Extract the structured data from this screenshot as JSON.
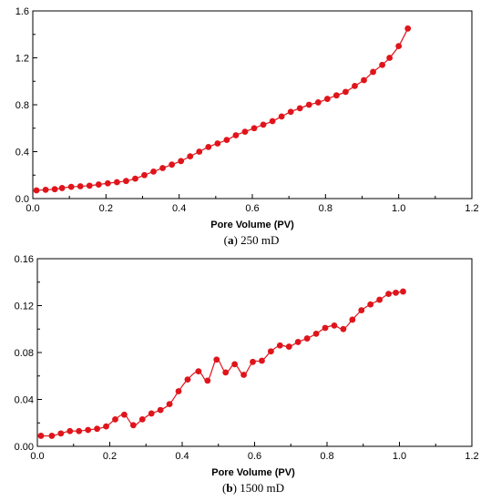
{
  "chart_data": [
    {
      "type": "line",
      "caption_tag": "a",
      "caption_text": "250 mD",
      "xlabel": "Pore Volume (PV)",
      "ylabel": "",
      "xlim": [
        0,
        1.2
      ],
      "ylim": [
        0,
        1.6
      ],
      "xticks": [
        "0.0",
        "0.2",
        "0.4",
        "0.6",
        "0.8",
        "1.0",
        "1.2"
      ],
      "yticks": [
        "0.0",
        "0.4",
        "0.8",
        "1.2",
        "1.6"
      ],
      "series": [
        {
          "color": "#e0141b",
          "x": [
            0.01,
            0.035,
            0.06,
            0.08,
            0.105,
            0.13,
            0.155,
            0.18,
            0.205,
            0.23,
            0.255,
            0.28,
            0.305,
            0.33,
            0.355,
            0.38,
            0.405,
            0.43,
            0.455,
            0.48,
            0.505,
            0.53,
            0.555,
            0.58,
            0.605,
            0.63,
            0.655,
            0.68,
            0.705,
            0.73,
            0.755,
            0.78,
            0.805,
            0.83,
            0.855,
            0.88,
            0.905,
            0.93,
            0.955,
            0.975,
            1.0,
            1.025
          ],
          "y": [
            0.07,
            0.075,
            0.08,
            0.09,
            0.1,
            0.105,
            0.11,
            0.12,
            0.13,
            0.14,
            0.15,
            0.17,
            0.2,
            0.23,
            0.26,
            0.29,
            0.32,
            0.36,
            0.4,
            0.44,
            0.47,
            0.5,
            0.54,
            0.57,
            0.6,
            0.63,
            0.66,
            0.7,
            0.74,
            0.77,
            0.8,
            0.82,
            0.85,
            0.88,
            0.91,
            0.96,
            1.01,
            1.08,
            1.14,
            1.2,
            1.3,
            1.45
          ]
        }
      ]
    },
    {
      "type": "line",
      "caption_tag": "b",
      "caption_text": "1500 mD",
      "xlabel": "Pore Volume (PV)",
      "ylabel": "",
      "xlim": [
        0,
        1.2
      ],
      "ylim": [
        0,
        0.16
      ],
      "xticks": [
        "0.0",
        "0.2",
        "0.4",
        "0.6",
        "0.8",
        "1.0",
        "1.2"
      ],
      "yticks": [
        "0.00",
        "0.04",
        "0.08",
        "0.12",
        "0.16"
      ],
      "series": [
        {
          "color": "#e0141b",
          "x": [
            0.01,
            0.04,
            0.065,
            0.09,
            0.115,
            0.14,
            0.165,
            0.19,
            0.215,
            0.24,
            0.265,
            0.29,
            0.315,
            0.34,
            0.365,
            0.39,
            0.415,
            0.445,
            0.47,
            0.495,
            0.52,
            0.545,
            0.57,
            0.595,
            0.62,
            0.645,
            0.67,
            0.695,
            0.72,
            0.745,
            0.77,
            0.795,
            0.82,
            0.845,
            0.87,
            0.895,
            0.92,
            0.945,
            0.97,
            0.99,
            1.01
          ],
          "y": [
            0.009,
            0.009,
            0.011,
            0.013,
            0.013,
            0.014,
            0.015,
            0.017,
            0.023,
            0.027,
            0.018,
            0.023,
            0.028,
            0.031,
            0.036,
            0.047,
            0.057,
            0.064,
            0.056,
            0.074,
            0.063,
            0.07,
            0.061,
            0.072,
            0.073,
            0.081,
            0.086,
            0.085,
            0.089,
            0.092,
            0.096,
            0.101,
            0.103,
            0.1,
            0.108,
            0.116,
            0.121,
            0.125,
            0.13,
            0.131,
            0.132
          ]
        }
      ]
    }
  ]
}
